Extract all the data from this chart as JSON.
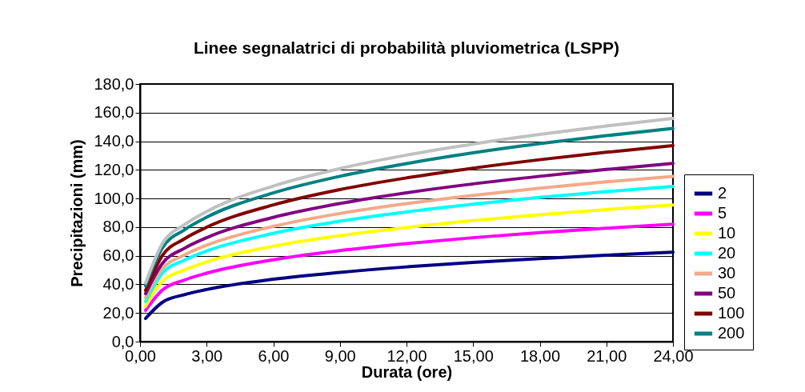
{
  "chart_data": {
    "type": "line",
    "title": "Linee segnalatrici di probabilità pluviometrica (LSPP)",
    "xlabel": "Durata (ore)",
    "ylabel": "Precipitazioni (mm)",
    "x": [
      0.25,
      1,
      2,
      3,
      6,
      9,
      12,
      15,
      18,
      21,
      24
    ],
    "series": [
      {
        "name": "2",
        "color": "#000080",
        "values": [
          16.2,
          27.4,
          32.8,
          36.4,
          43.6,
          48.4,
          52.2,
          55.3,
          58.0,
          60.4,
          62.5
        ]
      },
      {
        "name": "5",
        "color": "#ff00ff",
        "values": [
          21.8,
          35.9,
          43.0,
          47.8,
          57.2,
          63.6,
          68.5,
          72.6,
          76.1,
          79.2,
          82
        ]
      },
      {
        "name": "10",
        "color": "#ffff00",
        "values": [
          24.6,
          41.8,
          50.0,
          55.7,
          66.6,
          74.0,
          79.7,
          84.5,
          88.6,
          92.3,
          95.5
        ]
      },
      {
        "name": "20",
        "color": "#00ffff",
        "values": [
          28,
          47.5,
          56.9,
          63.3,
          75.6,
          84.1,
          90.6,
          96.0,
          100.7,
          104.8,
          108.5
        ]
      },
      {
        "name": "30",
        "color": "#f4a98a",
        "values": [
          30.7,
          50.6,
          60.5,
          67.3,
          80.5,
          89.5,
          96.4,
          102.2,
          107.2,
          111.6,
          115.5
        ]
      },
      {
        "name": "50",
        "color": "#800080",
        "values": [
          33.5,
          54.5,
          65.2,
          72.6,
          86.8,
          96.5,
          104.0,
          110.2,
          115.5,
          120.3,
          124.5
        ]
      },
      {
        "name": "100",
        "color": "#800000",
        "values": [
          35.8,
          60.0,
          71.8,
          79.9,
          95.5,
          106.2,
          114.4,
          121.2,
          127.1,
          132.3,
          137
        ]
      },
      {
        "name": "200",
        "color": "#008080",
        "values": [
          39,
          65.3,
          78.1,
          86.9,
          103.9,
          115.5,
          124.4,
          131.9,
          138.3,
          143.9,
          149
        ]
      },
      {
        "color": "#c0c0c0",
        "values": [
          41,
          68.3,
          81.7,
          90.9,
          108.7,
          120.9,
          130.3,
          138.1,
          144.8,
          150.7,
          156
        ]
      }
    ],
    "xlim": [
      0,
      24
    ],
    "ylim": [
      0,
      180
    ],
    "xticks": [
      {
        "value": 0,
        "label": "0,00"
      },
      {
        "value": 3,
        "label": "3,00"
      },
      {
        "value": 6,
        "label": "6,00"
      },
      {
        "value": 9,
        "label": "9,00"
      },
      {
        "value": 12,
        "label": "12,00"
      },
      {
        "value": 15,
        "label": "15,00"
      },
      {
        "value": 18,
        "label": "18,00"
      },
      {
        "value": 21,
        "label": "21,00"
      },
      {
        "value": 24,
        "label": "24,00"
      }
    ],
    "yticks": [
      {
        "value": 0,
        "label": "0,0"
      },
      {
        "value": 20,
        "label": "20,0"
      },
      {
        "value": 40,
        "label": "40,0"
      },
      {
        "value": 60,
        "label": "60,0"
      },
      {
        "value": 80,
        "label": "80,0"
      },
      {
        "value": 100,
        "label": "100,0"
      },
      {
        "value": 120,
        "label": "120,0"
      },
      {
        "value": 140,
        "label": "140,0"
      },
      {
        "value": 160,
        "label": "160,0"
      },
      {
        "value": 180,
        "label": "180,0"
      }
    ],
    "grid": "y",
    "legend": "right",
    "marker": "none",
    "line_style": "solid"
  }
}
